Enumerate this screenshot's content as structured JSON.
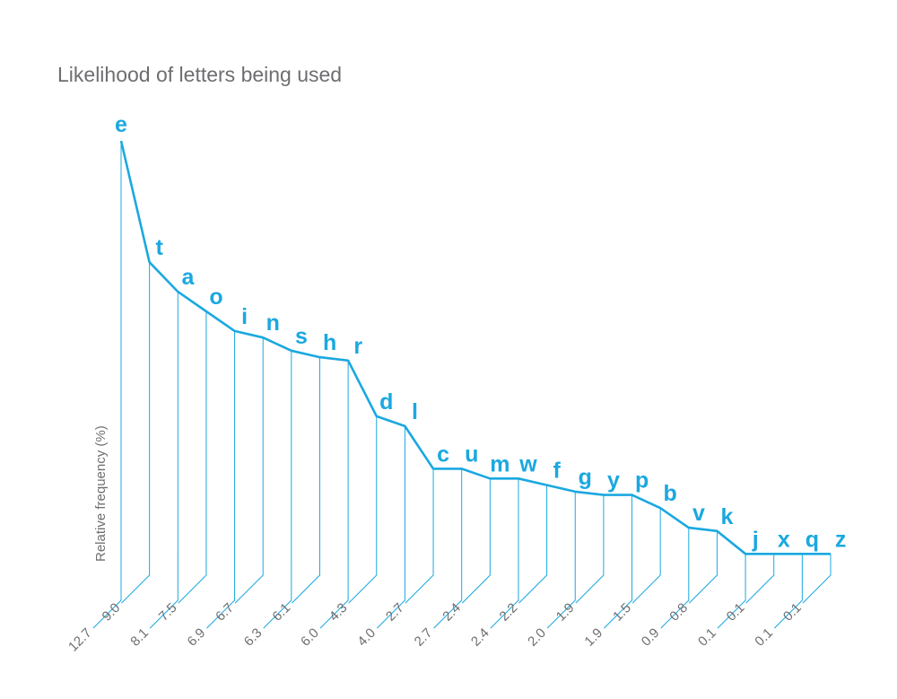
{
  "chart_data": {
    "type": "line",
    "title": "Likelihood of letters being used",
    "ylabel": "Relative frequency (%)",
    "xlabel": "",
    "categories": [
      "e",
      "t",
      "a",
      "o",
      "i",
      "n",
      "s",
      "h",
      "r",
      "d",
      "l",
      "c",
      "u",
      "m",
      "w",
      "f",
      "g",
      "y",
      "p",
      "b",
      "v",
      "k",
      "j",
      "x",
      "q",
      "z"
    ],
    "values": [
      12.7,
      9.0,
      8.1,
      7.5,
      6.9,
      6.7,
      6.3,
      6.1,
      6.0,
      4.3,
      4.0,
      2.7,
      2.7,
      2.4,
      2.4,
      2.2,
      2.0,
      1.9,
      1.9,
      1.5,
      0.9,
      0.8,
      0.1,
      0.1,
      0.1,
      0.1
    ],
    "value_labels": [
      "12.7",
      "9.0",
      "8.1",
      "7.5",
      "6.9",
      "6.7",
      "6.3",
      "6.1",
      "6.0",
      "4.3",
      "4.0",
      "2.7",
      "2.7",
      "2.4",
      "2.4",
      "2.2",
      "2.0",
      "1.9",
      "1.9",
      "1.5",
      "0.9",
      "0.8",
      "0.1",
      "0.1",
      "0.1",
      "0.1"
    ],
    "ylim": [
      0,
      12.7
    ],
    "grid": false,
    "line_color": "#1ba8e0",
    "text_color": "#6d6e71"
  }
}
